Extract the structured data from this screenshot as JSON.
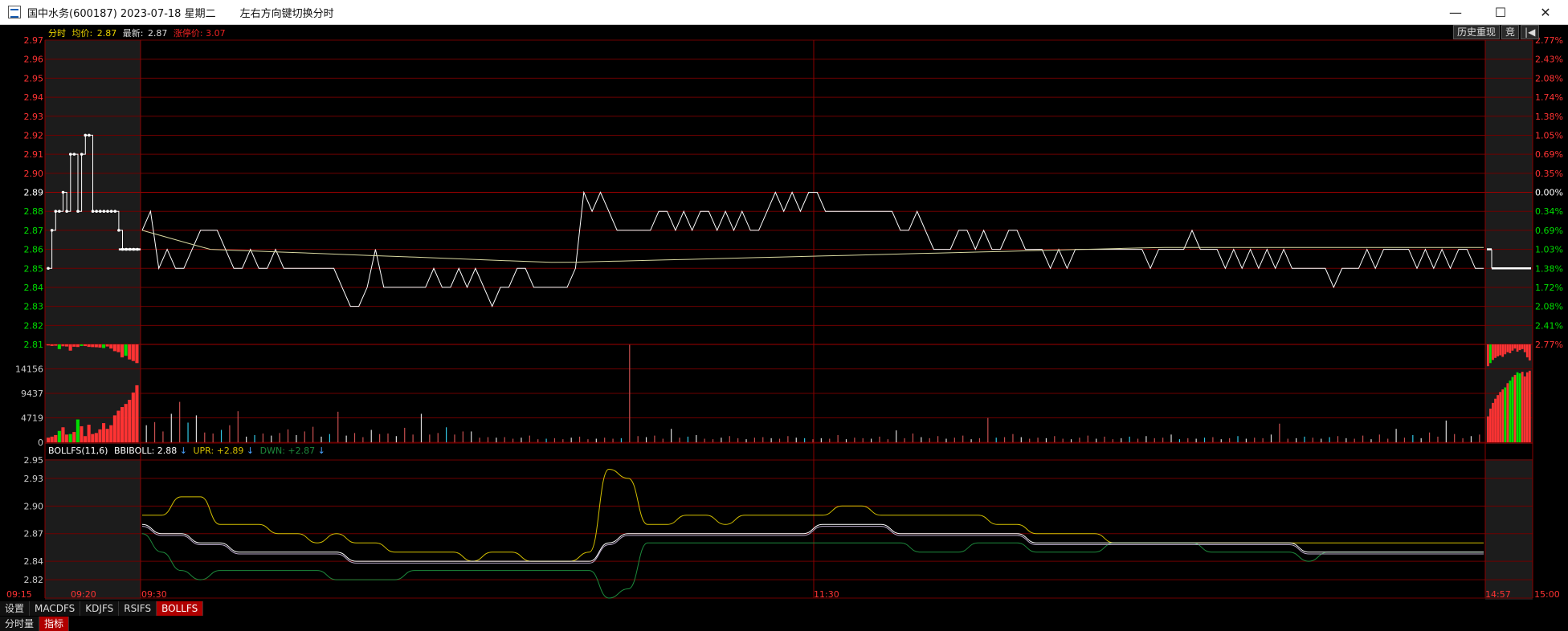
{
  "window": {
    "title": "国中水务(600187) 2023-07-18 星期二",
    "hint": "左右方向键切换分时",
    "minimize_glyph": "—",
    "maximize_glyph": "☐",
    "close_glyph": "✕"
  },
  "header": {
    "mode_label": "分时",
    "avg_label": "均价:",
    "avg_value": "2.87",
    "latest_label": "最新:",
    "latest_value": "2.87",
    "limit_label": "涨停价:",
    "limit_value": "3.07",
    "history_button": "历史重现",
    "auction_button": "竞",
    "back_glyph": "|◀"
  },
  "indicator_header": {
    "name": "BOLLFS(11,6)",
    "bbiboll_label": "BBIBOLL:",
    "bbiboll_value": "2.88",
    "upr_label": "UPR:",
    "upr_value": "+2.89",
    "dwn_label": "DWN:",
    "dwn_value": "+2.87",
    "down_arrow": "↓"
  },
  "colors": {
    "up": "#ff3333",
    "down": "#00dd00",
    "grid": "#6e0000",
    "price": "#ffffff",
    "avg": "#d8d8a0",
    "upper": "#d4c000",
    "middle": "#ffffff",
    "lower": "#1d8a3c",
    "axis": "#ee2222"
  },
  "chart_data": {
    "type": "line",
    "price_axis_labels": [
      "2.97",
      "2.96",
      "2.95",
      "2.94",
      "2.93",
      "2.92",
      "2.91",
      "2.90",
      "2.89",
      "2.88",
      "2.87",
      "2.86",
      "2.85",
      "2.84",
      "2.83",
      "2.82",
      "2.81"
    ],
    "pct_axis_labels": [
      "2.77%",
      "2.43%",
      "2.08%",
      "1.74%",
      "1.38%",
      "1.05%",
      "0.69%",
      "0.35%",
      "0.00%",
      "0.34%",
      "0.69%",
      "1.03%",
      "1.38%",
      "1.72%",
      "2.08%",
      "2.41%",
      "2.77%"
    ],
    "ylim": [
      2.81,
      2.97
    ],
    "prev_close": 2.89,
    "volume_axis_labels": [
      "14156",
      "9437",
      "4719",
      "0"
    ],
    "volume_max": 18875,
    "boll_axis_labels": [
      "2.95",
      "2.93",
      "2.90",
      "2.87",
      "2.84",
      "2.82"
    ],
    "boll_ylim": [
      2.8,
      2.95
    ],
    "time_labels": [
      "09:15",
      "09:20",
      "09:30",
      "11:30",
      "14:57",
      "15:00"
    ],
    "auction_prices": [
      2.85,
      2.87,
      2.88,
      2.88,
      2.89,
      2.88,
      2.91,
      2.91,
      2.88,
      2.91,
      2.92,
      2.92,
      2.88,
      2.88,
      2.88,
      2.88,
      2.88,
      2.88,
      2.88,
      2.87,
      2.86,
      2.86,
      2.86,
      2.86,
      2.86
    ],
    "main_prices": [
      2.87,
      2.88,
      2.85,
      2.86,
      2.85,
      2.85,
      2.86,
      2.87,
      2.87,
      2.87,
      2.86,
      2.85,
      2.85,
      2.86,
      2.85,
      2.85,
      2.86,
      2.85,
      2.85,
      2.85,
      2.85,
      2.85,
      2.85,
      2.85,
      2.84,
      2.83,
      2.83,
      2.84,
      2.86,
      2.84,
      2.84,
      2.84,
      2.84,
      2.84,
      2.84,
      2.85,
      2.84,
      2.84,
      2.85,
      2.84,
      2.85,
      2.84,
      2.83,
      2.84,
      2.84,
      2.85,
      2.85,
      2.84,
      2.84,
      2.84,
      2.84,
      2.84,
      2.85,
      2.89,
      2.88,
      2.89,
      2.88,
      2.87,
      2.87,
      2.87,
      2.87,
      2.87,
      2.88,
      2.88,
      2.87,
      2.88,
      2.87,
      2.88,
      2.88,
      2.87,
      2.88,
      2.87,
      2.88,
      2.87,
      2.87,
      2.88,
      2.89,
      2.88,
      2.89,
      2.88,
      2.89,
      2.89,
      2.88,
      2.88,
      2.88,
      2.88,
      2.88,
      2.88,
      2.88,
      2.88,
      2.88,
      2.87,
      2.87,
      2.88,
      2.87,
      2.86,
      2.86,
      2.86,
      2.87,
      2.87,
      2.86,
      2.87,
      2.86,
      2.86,
      2.87,
      2.87,
      2.86,
      2.86,
      2.86,
      2.85,
      2.86,
      2.85,
      2.86,
      2.86,
      2.86,
      2.86,
      2.86,
      2.86,
      2.86,
      2.86,
      2.86,
      2.85,
      2.86,
      2.86,
      2.86,
      2.86,
      2.87,
      2.86,
      2.86,
      2.86,
      2.85,
      2.86,
      2.85,
      2.86,
      2.85,
      2.86,
      2.85,
      2.86,
      2.85,
      2.85,
      2.85,
      2.85,
      2.85,
      2.84,
      2.85,
      2.85,
      2.85,
      2.86,
      2.85,
      2.86,
      2.86,
      2.86,
      2.86,
      2.85,
      2.86,
      2.85,
      2.86,
      2.85,
      2.86,
      2.86,
      2.85,
      2.85
    ],
    "close_prices": [
      2.86,
      2.85,
      2.85,
      2.85,
      2.85,
      2.85,
      2.85,
      2.85,
      2.85,
      2.85,
      2.85,
      2.85,
      2.85
    ],
    "avg_start": 2.87,
    "avg_end": 2.86,
    "boll_upper": [
      2.89,
      2.89,
      2.91,
      2.91,
      2.88,
      2.88,
      2.88,
      2.87,
      2.87,
      2.86,
      2.87,
      2.86,
      2.86,
      2.85,
      2.85,
      2.85,
      2.85,
      2.84,
      2.85,
      2.85,
      2.84,
      2.84,
      2.84,
      2.85,
      2.94,
      2.93,
      2.88,
      2.88,
      2.89,
      2.89,
      2.88,
      2.89,
      2.89,
      2.89,
      2.89,
      2.89,
      2.9,
      2.9,
      2.89,
      2.89,
      2.89,
      2.89,
      2.89,
      2.89,
      2.88,
      2.88,
      2.87,
      2.87,
      2.87,
      2.87,
      2.86,
      2.86,
      2.86,
      2.86,
      2.86,
      2.86,
      2.86,
      2.86,
      2.86,
      2.86,
      2.86,
      2.86,
      2.86,
      2.86,
      2.86,
      2.86,
      2.86,
      2.86,
      2.86,
      2.86
    ],
    "boll_middle": [
      2.88,
      2.87,
      2.87,
      2.86,
      2.86,
      2.85,
      2.85,
      2.85,
      2.85,
      2.85,
      2.85,
      2.84,
      2.84,
      2.84,
      2.84,
      2.84,
      2.84,
      2.84,
      2.84,
      2.84,
      2.84,
      2.84,
      2.84,
      2.84,
      2.86,
      2.87,
      2.87,
      2.87,
      2.87,
      2.87,
      2.87,
      2.87,
      2.87,
      2.87,
      2.87,
      2.88,
      2.88,
      2.88,
      2.88,
      2.87,
      2.87,
      2.87,
      2.87,
      2.87,
      2.87,
      2.87,
      2.86,
      2.86,
      2.86,
      2.86,
      2.86,
      2.86,
      2.86,
      2.86,
      2.86,
      2.86,
      2.86,
      2.86,
      2.86,
      2.86,
      2.85,
      2.85,
      2.85,
      2.85,
      2.85,
      2.85,
      2.85,
      2.85,
      2.85,
      2.85
    ],
    "boll_lower": [
      2.87,
      2.85,
      2.83,
      2.82,
      2.83,
      2.83,
      2.83,
      2.83,
      2.83,
      2.83,
      2.82,
      2.82,
      2.82,
      2.82,
      2.83,
      2.83,
      2.83,
      2.83,
      2.83,
      2.83,
      2.83,
      2.83,
      2.83,
      2.83,
      2.8,
      2.81,
      2.86,
      2.86,
      2.86,
      2.86,
      2.86,
      2.86,
      2.86,
      2.86,
      2.86,
      2.86,
      2.86,
      2.86,
      2.86,
      2.86,
      2.85,
      2.85,
      2.85,
      2.86,
      2.86,
      2.86,
      2.85,
      2.85,
      2.85,
      2.85,
      2.86,
      2.86,
      2.86,
      2.86,
      2.86,
      2.85,
      2.85,
      2.85,
      2.85,
      2.85,
      2.84,
      2.85,
      2.85,
      2.85,
      2.85,
      2.85,
      2.85,
      2.85,
      2.85,
      2.85
    ],
    "auction_volumes_imbalance": [
      -200,
      -300,
      -250,
      -900,
      -350,
      -400,
      -1200,
      -450,
      -500,
      -300,
      -320,
      -480,
      -520,
      -550,
      -610,
      -700,
      -400,
      -800,
      -1300,
      -1500,
      -2500,
      -2200,
      -2900,
      -3200,
      -3600
    ],
    "auction_volumes": [
      900,
      1100,
      1400,
      2200,
      2900,
      1500,
      1600,
      2000,
      4400,
      3100,
      1200,
      3400,
      1600,
      1800,
      2500,
      3700,
      2600,
      3300,
      5200,
      6100,
      6800,
      7400,
      8200,
      9600,
      11000
    ],
    "auction_volume_colors": [
      "up",
      "up",
      "up",
      "down",
      "up",
      "up",
      "down",
      "up",
      "down",
      "up",
      "up",
      "up",
      "up",
      "up",
      "up",
      "up",
      "up",
      "up",
      "up",
      "up",
      "up",
      "up",
      "up",
      "up",
      "up"
    ],
    "main_volumes": [
      3300,
      3900,
      2100,
      5500,
      7800,
      3800,
      5200,
      1900,
      1700,
      2400,
      3300,
      6000,
      1100,
      1400,
      1700,
      1300,
      1800,
      2500,
      1400,
      2100,
      3000,
      1100,
      1600,
      5900,
      1300,
      1800,
      1000,
      2400,
      1600,
      1700,
      1200,
      2800,
      1500,
      5500,
      1500,
      1800,
      2900,
      1500,
      2100,
      2100,
      900,
      1000,
      900,
      1000,
      700,
      900,
      1300,
      600,
      700,
      800,
      600,
      900,
      1100,
      600,
      700,
      900,
      700,
      800,
      18800,
      1200,
      1000,
      1300,
      700,
      2600,
      900,
      1100,
      1400,
      700,
      600,
      900,
      1200,
      800,
      600,
      900,
      1000,
      800,
      700,
      1200,
      900,
      800,
      600,
      800,
      700,
      1400,
      600,
      900,
      800,
      700,
      1100,
      600,
      2300,
      800,
      1700,
      1000,
      800,
      1200,
      700,
      900,
      1300,
      600,
      800,
      4700,
      900,
      1000,
      1600,
      1000,
      700,
      900,
      800,
      1200,
      700,
      600,
      900,
      1300,
      700,
      1100,
      600,
      800,
      1100,
      700,
      1200,
      800,
      900,
      1500,
      600,
      800,
      700,
      900,
      1000,
      600,
      800,
      1200,
      700,
      900,
      800,
      1500,
      3600,
      700,
      800,
      1100,
      900,
      700,
      1000,
      1200,
      800,
      700,
      1300,
      600,
      1500,
      700,
      2600,
      900,
      1400,
      800,
      1900,
      1100,
      4200,
      1600,
      800,
      1200,
      1500
    ],
    "main_volume_colors_cyan": [
      5,
      9,
      13,
      22,
      36,
      48,
      57,
      65,
      79,
      102,
      118,
      124,
      127,
      131,
      139,
      142,
      152
    ],
    "close_volumes": [
      5000,
      6500,
      7600,
      8400,
      9100,
      9700,
      10200,
      10600,
      11400,
      11900,
      12600,
      13000,
      13500,
      13300,
      13600,
      12700,
      13500,
      13800
    ],
    "close_volume_colors": [
      "up",
      "up",
      "up",
      "up",
      "up",
      "up",
      "up",
      "down",
      "up",
      "down",
      "down",
      "up",
      "down",
      "down",
      "up",
      "up",
      "up",
      "up"
    ],
    "close_imbalance": [
      -4200,
      -3600,
      -3000,
      -2600,
      -2300,
      -2100,
      -2400,
      -1900,
      -1500,
      -1700,
      -1200,
      -800,
      -1400,
      -1100,
      -900,
      -1500,
      -2500,
      -3100
    ]
  },
  "tabs_row1": [
    "设置",
    "MACDFS",
    "KDJFS",
    "RSIFS",
    "BOLLFS"
  ],
  "tabs_row1_active": 4,
  "tabs_row2": [
    "分时量",
    "指标"
  ],
  "tabs_row2_active": 1
}
